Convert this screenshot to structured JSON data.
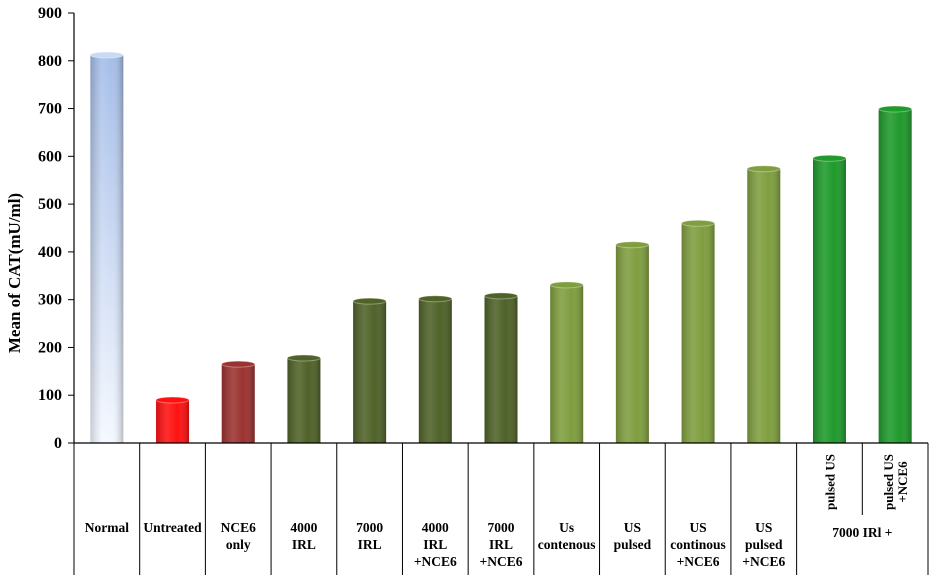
{
  "chart_data": {
    "type": "bar",
    "ylabel": "Mean of CAT(mU/ml)",
    "ylim": [
      0,
      900
    ],
    "yticks": [
      0,
      100,
      200,
      300,
      400,
      500,
      600,
      700,
      800,
      900
    ],
    "grid": false,
    "legend": "none",
    "categories": [
      [
        "Normal"
      ],
      [
        "Untreated"
      ],
      [
        "NCE6",
        "only"
      ],
      [
        "4000",
        "IRL"
      ],
      [
        "7000",
        "IRL"
      ],
      [
        "4000",
        "IRL",
        "+NCE6"
      ],
      [
        "7000",
        "IRL",
        "+NCE6"
      ],
      [
        "Us",
        "contenous"
      ],
      [
        "US",
        "pulsed"
      ],
      [
        "US",
        "continous",
        "+NCE6"
      ],
      [
        "US",
        "pulsed",
        "+NCE6"
      ],
      [
        "pulsed US"
      ],
      [
        "pulsed US",
        "+NCE6"
      ]
    ],
    "values": [
      812,
      90,
      165,
      178,
      297,
      302,
      308,
      331,
      415,
      460,
      574,
      596,
      699
    ],
    "colors": [
      "#a9c2ea",
      "#ff1111",
      "#9b3230",
      "#4f6228",
      "#4f6228",
      "#4f6228",
      "#4f6228",
      "#7f9e3f",
      "#7f9e3f",
      "#7f9e3f",
      "#7f9e3f",
      "#1f9a2b",
      "#1f9a2b"
    ],
    "group_label": "7000 IRl +"
  }
}
